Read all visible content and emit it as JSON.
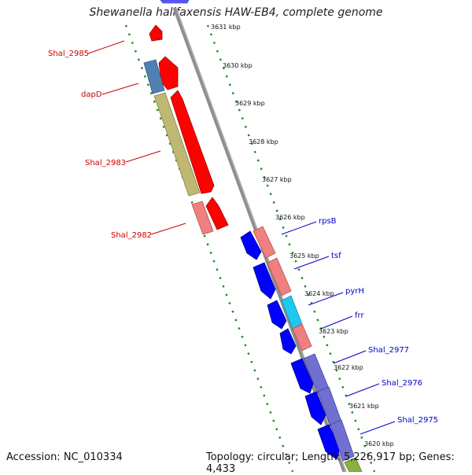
{
  "title": "Shewanella halifaxensis HAW-EB4, complete genome",
  "accession": "Accession: NC_010334",
  "topology": "Topology: circular; Length: 5,226,917 bp; Genes: 4,433",
  "colors": {
    "backbone": "#8c8c8c",
    "tick_dots": "#1a8a1a",
    "forward_gene": "#ff0000",
    "reverse_gene": "#0000ff",
    "left_label": "#cc0000",
    "right_label": "#0000cc",
    "pink_box": "#f08080",
    "olive_box": "#bfb873",
    "steelblue_box": "#5080b0",
    "cyan_box": "#20c8f0",
    "purple_box": "#7070d0"
  },
  "ticks": [
    "3631 kbp",
    "3630 kbp",
    "3629 kbp",
    "3628 kbp",
    "3627 kbp",
    "3626 kbp",
    "3625 kbp",
    "3624 kbp",
    "3623 kbp",
    "3622 kbp",
    "3621 kbp",
    "3620 kbp"
  ],
  "left_labels": [
    "Shal_2985",
    "dapD",
    "Shal_2983",
    "Shal_2982"
  ],
  "right_labels": [
    "rpsB",
    "tsf",
    "pyrH",
    "frr",
    "Shal_2977",
    "Shal_2976",
    "Shal_2975"
  ]
}
